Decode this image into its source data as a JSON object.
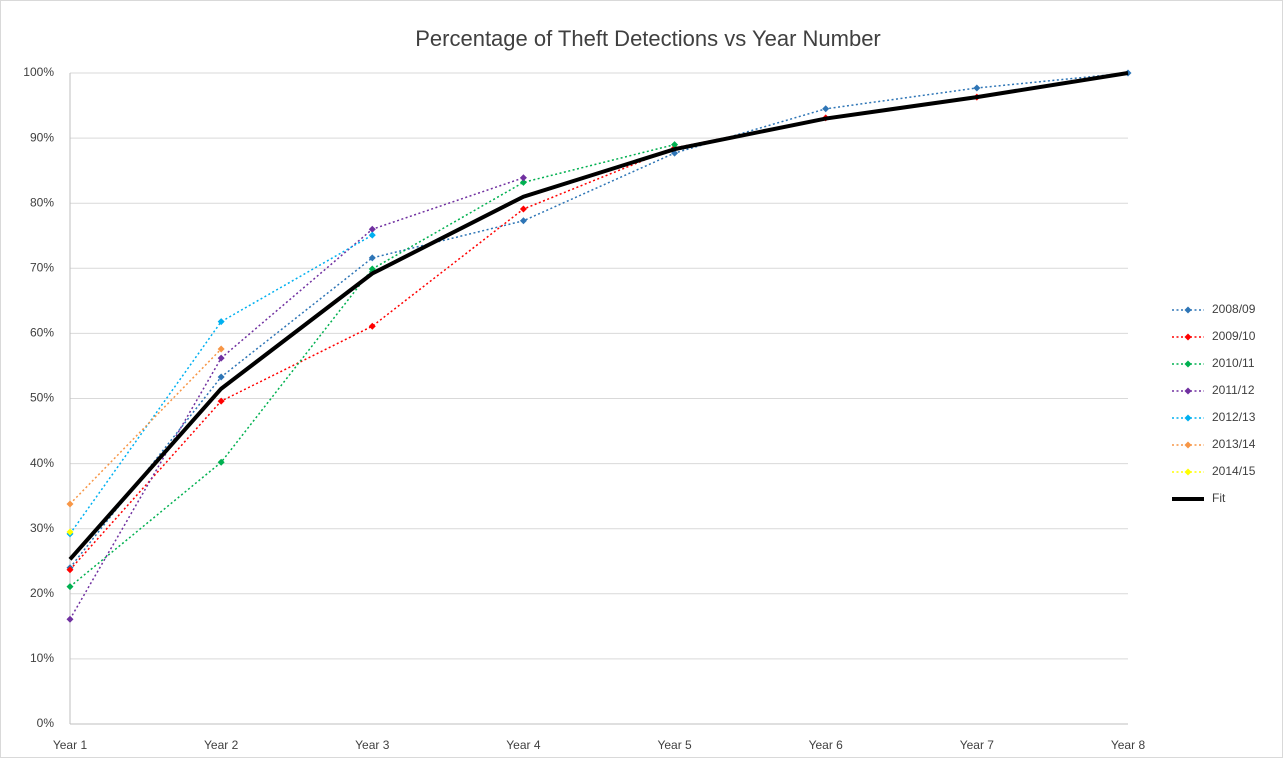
{
  "chart_data": {
    "type": "line",
    "title": "Percentage of Theft Detections vs Year Number",
    "categories": [
      "Year 1",
      "Year 2",
      "Year 3",
      "Year 4",
      "Year 5",
      "Year 6",
      "Year 7",
      "Year 8"
    ],
    "ylim": [
      0,
      100
    ],
    "yticks": [
      {
        "value": 0,
        "label": "0%"
      },
      {
        "value": 10,
        "label": "10%"
      },
      {
        "value": 20,
        "label": "20%"
      },
      {
        "value": 30,
        "label": "30%"
      },
      {
        "value": 40,
        "label": "40%"
      },
      {
        "value": 50,
        "label": "50%"
      },
      {
        "value": 60,
        "label": "60%"
      },
      {
        "value": 70,
        "label": "70%"
      },
      {
        "value": 80,
        "label": "80%"
      },
      {
        "value": 90,
        "label": "90%"
      },
      {
        "value": 100,
        "label": "100%"
      }
    ],
    "grid": true,
    "legend": "right",
    "series": [
      {
        "name": "2008/09",
        "color": "#2e75b6",
        "style": "dotted",
        "markers": true,
        "values": [
          24.0,
          53.3,
          71.6,
          77.3,
          87.7,
          94.5,
          97.7,
          100
        ]
      },
      {
        "name": "2009/10",
        "color": "#ff0000",
        "style": "dotted",
        "markers": true,
        "values": [
          23.7,
          49.6,
          61.1,
          79.1,
          88.5,
          93.1,
          96.3,
          null
        ]
      },
      {
        "name": "2010/11",
        "color": "#00b050",
        "style": "dotted",
        "markers": true,
        "values": [
          21.1,
          40.2,
          69.9,
          83.2,
          89.0,
          null,
          null,
          null
        ]
      },
      {
        "name": "2011/12",
        "color": "#7030a0",
        "style": "dotted",
        "markers": true,
        "values": [
          16.1,
          56.2,
          76.0,
          83.9,
          null,
          null,
          null,
          null
        ]
      },
      {
        "name": "2012/13",
        "color": "#00b0f0",
        "style": "dotted",
        "markers": true,
        "values": [
          29.2,
          61.8,
          75.1,
          null,
          null,
          null,
          null,
          null
        ]
      },
      {
        "name": "2013/14",
        "color": "#f79646",
        "style": "dotted",
        "markers": true,
        "values": [
          33.8,
          57.6,
          null,
          null,
          null,
          null,
          null,
          null
        ]
      },
      {
        "name": "2014/15",
        "color": "#ffff00",
        "style": "dotted",
        "markers": true,
        "values": [
          29.5,
          null,
          null,
          null,
          null,
          null,
          null,
          null
        ]
      },
      {
        "name": "Fit",
        "color": "#000000",
        "style": "solid",
        "markers": false,
        "values": [
          25.3,
          51.5,
          69.2,
          81.0,
          88.3,
          93.0,
          96.3,
          100
        ]
      }
    ]
  }
}
